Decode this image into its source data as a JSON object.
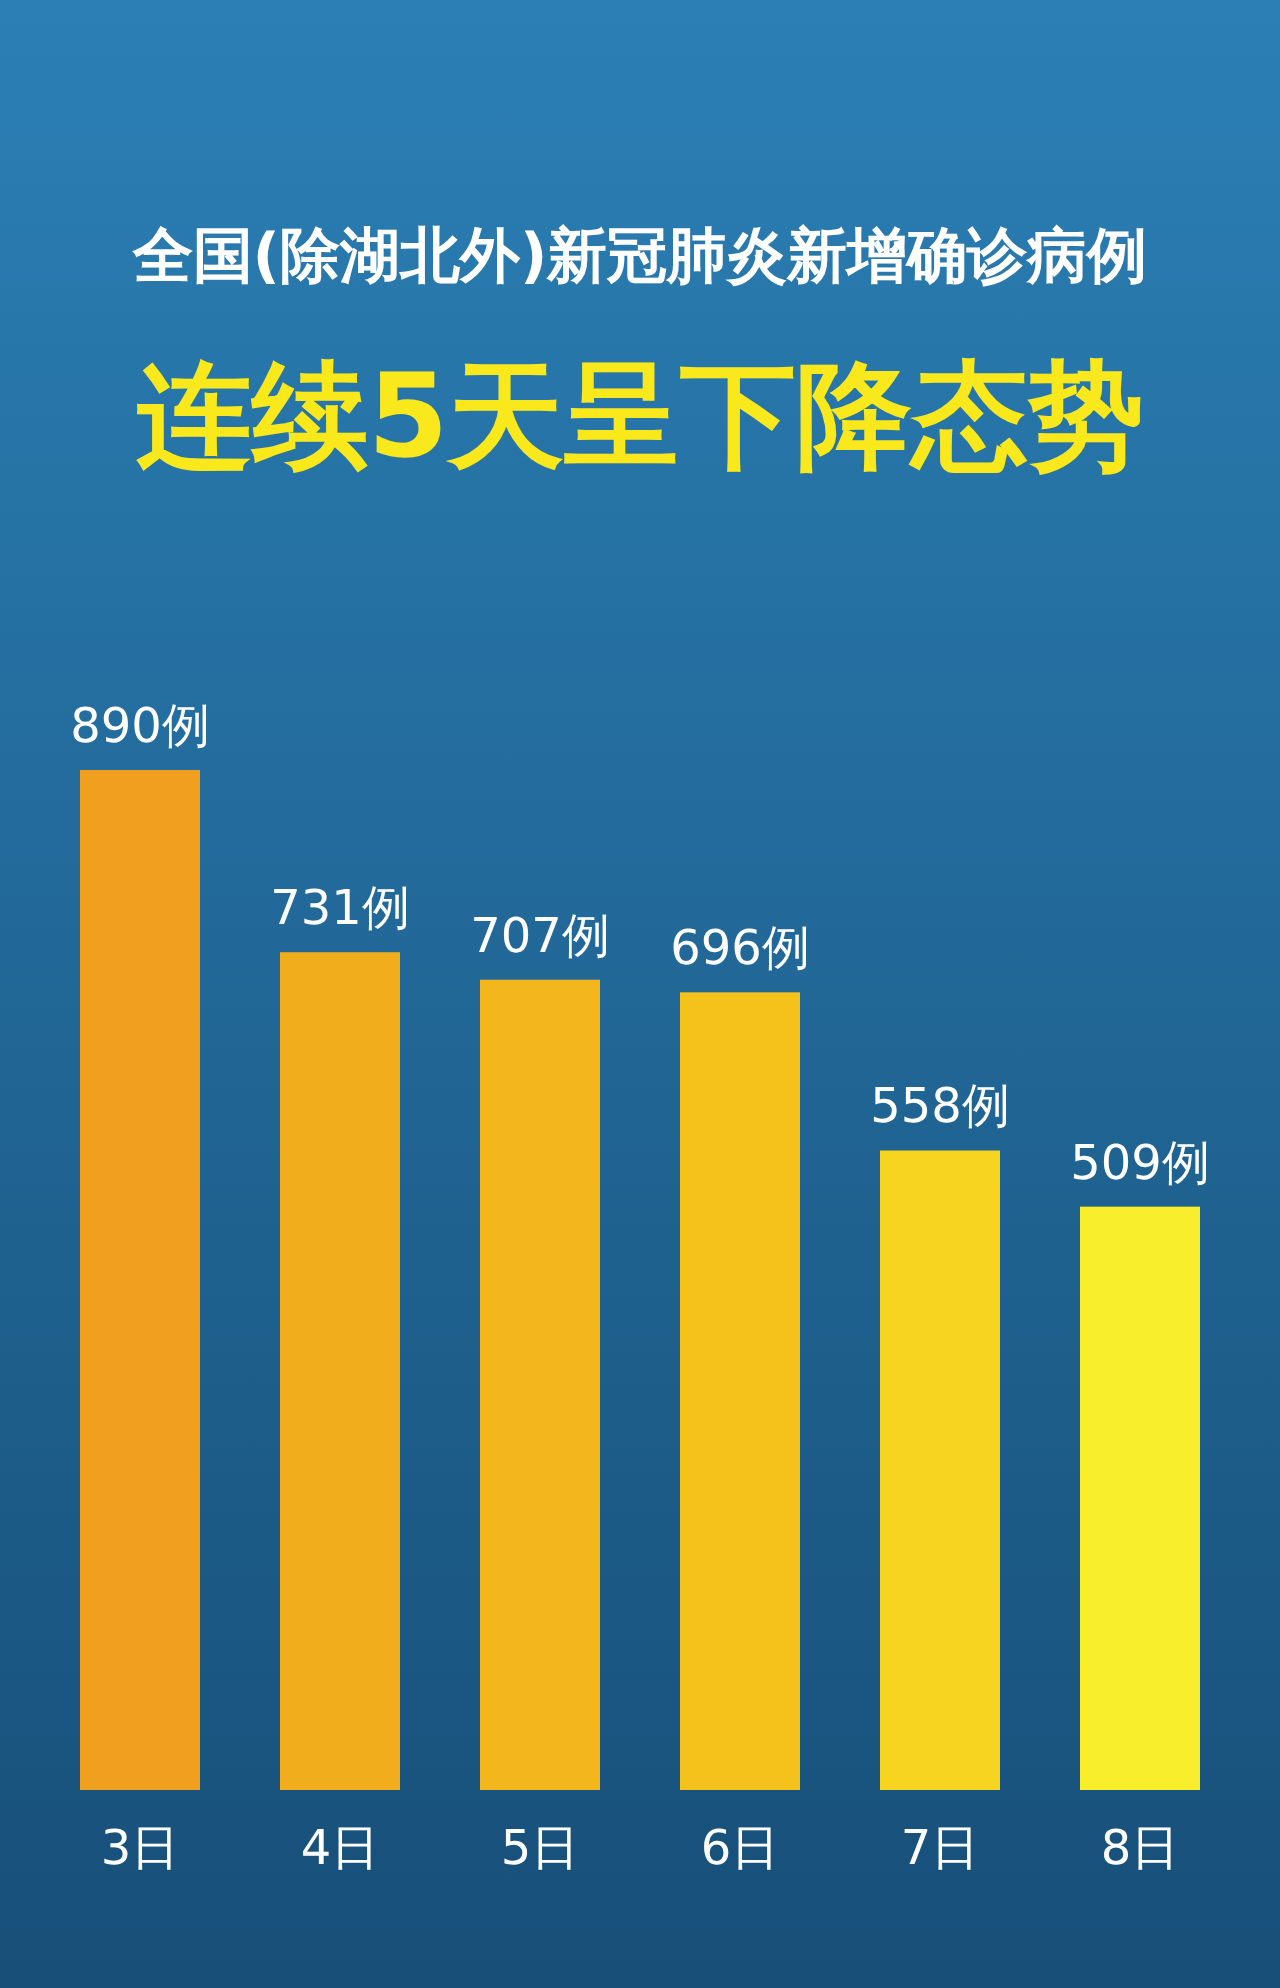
{
  "chart_data": {
    "type": "bar",
    "title": "全国(除湖北外)新冠肺炎新增确诊病例",
    "subtitle": "连续5天呈下降态势",
    "categories": [
      "3日",
      "4日",
      "5日",
      "6日",
      "7日",
      "8日"
    ],
    "values": [
      890,
      731,
      707,
      696,
      558,
      509
    ],
    "value_labels": [
      "890例",
      "731例",
      "707例",
      "696例",
      "558例",
      "509例"
    ],
    "colors": [
      "#f0a01e",
      "#f2ad1c",
      "#f3b61c",
      "#f5c21c",
      "#f6d420",
      "#f8ee2c"
    ]
  }
}
